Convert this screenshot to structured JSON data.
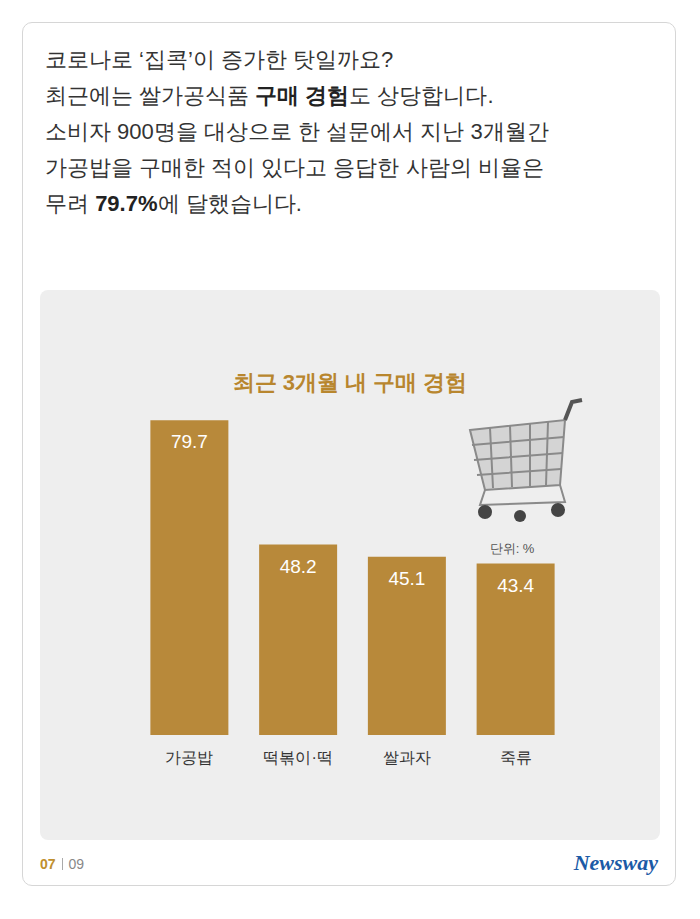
{
  "header": {
    "lines": [
      [
        {
          "text": "코로나로 ‘집콕’이 증가한 탓일까요?"
        }
      ],
      [
        {
          "text": "최근에는 쌀가공식품 "
        },
        {
          "text": "구매 경험",
          "bold": true
        },
        {
          "text": "도 상당합니다."
        }
      ],
      [
        {
          "text": "소비자 900명을 대상으로 한 설문에서 지난 3개월간"
        }
      ],
      [
        {
          "text": "가공밥을 구매한 적이 있다고 응답한 사람의 비율은"
        }
      ],
      [
        {
          "text": "무려 "
        },
        {
          "text": "79.7%",
          "bold": true
        },
        {
          "text": "에 달했습니다."
        }
      ]
    ]
  },
  "chart_data": {
    "type": "bar",
    "title": "최근 3개월 내 구매 경험",
    "categories": [
      "가공밥",
      "떡볶이·떡",
      "쌀과자",
      "죽류"
    ],
    "values": [
      79.7,
      48.2,
      45.1,
      43.4
    ],
    "color": "#b8893a",
    "ylim": [
      0,
      80
    ],
    "grid": false,
    "tick_labels": "x",
    "data_labels": true,
    "annotation": "단위: %"
  },
  "footer": {
    "page": "07",
    "total": "09",
    "brand": "Newsway"
  }
}
